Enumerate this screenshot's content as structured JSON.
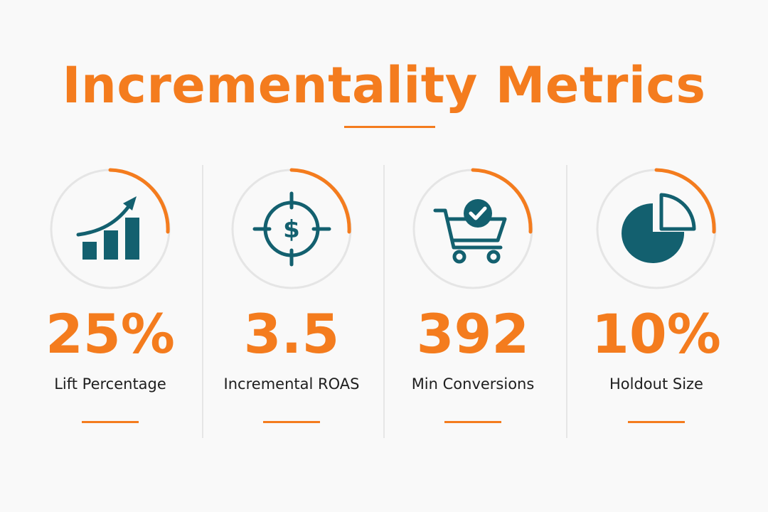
{
  "title": "Incrementality Metrics",
  "colors": {
    "accent": "#f47c1e",
    "icon": "#13606f",
    "ring_track": "#e5e5e5",
    "text": "#1e1e1e"
  },
  "metrics": [
    {
      "value": "25%",
      "label": "Lift Percentage",
      "icon": "bar-chart-trending-up-icon"
    },
    {
      "value": "3.5",
      "label": "Incremental ROAS",
      "icon": "dollar-target-icon"
    },
    {
      "value": "392",
      "label": "Min Conversions",
      "icon": "shopping-cart-check-icon"
    },
    {
      "value": "10%",
      "label": "Holdout Size",
      "icon": "pie-chart-icon"
    }
  ]
}
